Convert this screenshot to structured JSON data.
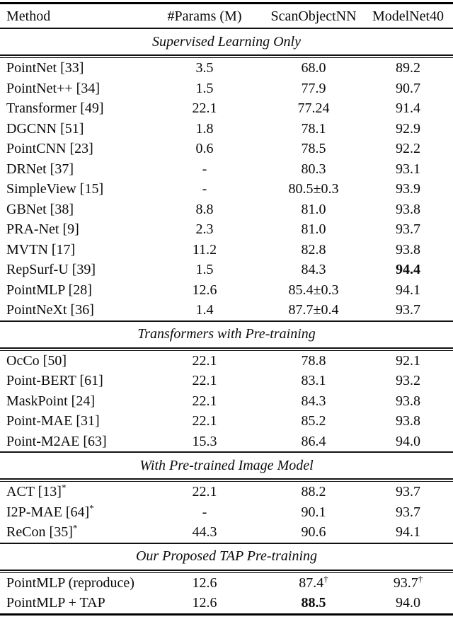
{
  "table": {
    "columns": [
      "Method",
      "#Params (M)",
      "ScanObjectNN",
      "ModelNet40"
    ],
    "sections": [
      {
        "title": "Supervised Learning Only",
        "rows": [
          {
            "method": "PointNet [33]",
            "params": "3.5",
            "scan": "68.0",
            "modelnet": "89.2"
          },
          {
            "method": "PointNet++ [34]",
            "params": "1.5",
            "scan": "77.9",
            "modelnet": "90.7"
          },
          {
            "method": "Transformer [49]",
            "params": "22.1",
            "scan": "77.24",
            "modelnet": "91.4"
          },
          {
            "method": "DGCNN [51]",
            "params": "1.8",
            "scan": "78.1",
            "modelnet": "92.9"
          },
          {
            "method": "PointCNN [23]",
            "params": "0.6",
            "scan": "78.5",
            "modelnet": "92.2"
          },
          {
            "method": "DRNet [37]",
            "params": "-",
            "scan": "80.3",
            "modelnet": "93.1"
          },
          {
            "method": "SimpleView [15]",
            "params": "-",
            "scan": "80.5±0.3",
            "modelnet": "93.9"
          },
          {
            "method": "GBNet [38]",
            "params": "8.8",
            "scan": "81.0",
            "modelnet": "93.8"
          },
          {
            "method": "PRA-Net [9]",
            "params": "2.3",
            "scan": "81.0",
            "modelnet": "93.7"
          },
          {
            "method": "MVTN [17]",
            "params": "11.2",
            "scan": "82.8",
            "modelnet": "93.8"
          },
          {
            "method": "RepSurf-U [39]",
            "params": "1.5",
            "scan": "84.3",
            "modelnet": "94.4",
            "modelnet_bold": true
          },
          {
            "method": "PointMLP [28]",
            "params": "12.6",
            "scan": "85.4±0.3",
            "modelnet": "94.1"
          },
          {
            "method": "PointNeXt [36]",
            "params": "1.4",
            "scan": "87.7±0.4",
            "modelnet": "93.7"
          }
        ]
      },
      {
        "title": "Transformers with Pre-training",
        "rows": [
          {
            "method": "OcCo [50]",
            "params": "22.1",
            "scan": "78.8",
            "modelnet": "92.1"
          },
          {
            "method": "Point-BERT [61]",
            "params": "22.1",
            "scan": "83.1",
            "modelnet": "93.2"
          },
          {
            "method": "MaskPoint [24]",
            "params": "22.1",
            "scan": "84.3",
            "modelnet": "93.8"
          },
          {
            "method": "Point-MAE [31]",
            "params": "22.1",
            "scan": "85.2",
            "modelnet": "93.8"
          },
          {
            "method": "Point-M2AE [63]",
            "params": "15.3",
            "scan": "86.4",
            "modelnet": "94.0"
          }
        ]
      },
      {
        "title": "With Pre-trained Image Model",
        "rows": [
          {
            "method": "ACT [13]",
            "method_sup": "*",
            "params": "22.1",
            "scan": "88.2",
            "modelnet": "93.7"
          },
          {
            "method": "I2P-MAE [64]",
            "method_sup": "*",
            "params": "-",
            "scan": "90.1",
            "modelnet": "93.7"
          },
          {
            "method": "ReCon [35]",
            "method_sup": "*",
            "params": "44.3",
            "scan": "90.6",
            "modelnet": "94.1"
          }
        ]
      },
      {
        "title": "Our Proposed TAP Pre-training",
        "rows": [
          {
            "method": "PointMLP (reproduce)",
            "params": "12.6",
            "scan": "87.4",
            "scan_sup": "†",
            "modelnet": "93.7",
            "modelnet_sup": "†"
          },
          {
            "method": "PointMLP + TAP",
            "params": "12.6",
            "scan": "88.5",
            "scan_bold": true,
            "modelnet": "94.0"
          }
        ]
      }
    ]
  }
}
